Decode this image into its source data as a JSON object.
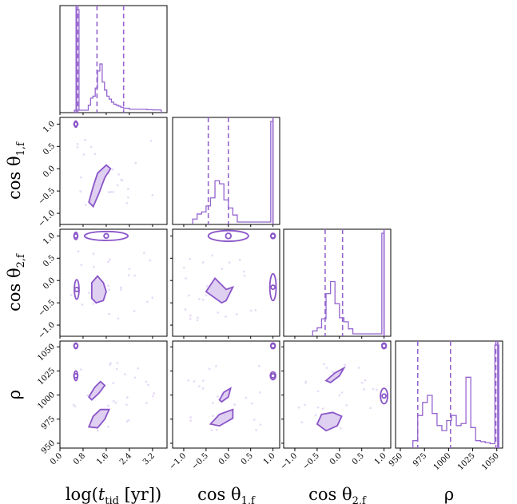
{
  "chart_data": {
    "type": "corner",
    "accent_color": "#9565cf",
    "parameters": [
      {
        "key": "logt",
        "label_main": "log(",
        "label_t": "t",
        "label_sub": "tid",
        "label_rest": " [yr])",
        "range": [
          0.0,
          3.7
        ],
        "ticks": [
          0.0,
          0.8,
          1.6,
          2.4,
          3.2
        ],
        "tick_labels": [
          "0.0",
          "0.8",
          "1.6",
          "2.4",
          "3.2"
        ],
        "quantiles": [
          0.62,
          1.28,
          2.2
        ],
        "truth": 0.56,
        "hist_edges": [
          0.5,
          0.58,
          0.66,
          0.74,
          0.82,
          0.9,
          0.98,
          1.06,
          1.14,
          1.22,
          1.3,
          1.38,
          1.46,
          1.54,
          1.62,
          1.7,
          1.78,
          1.86,
          1.94,
          2.02,
          2.1,
          2.2,
          2.4,
          2.6,
          2.8,
          3.0,
          3.2,
          3.5
        ],
        "hist_counts": [
          0,
          100,
          0,
          0,
          0,
          0,
          5,
          12,
          14,
          22,
          39,
          46,
          28,
          20,
          14,
          11,
          8,
          6,
          5,
          4,
          3,
          2,
          1,
          1,
          1,
          0.5,
          0.3
        ]
      },
      {
        "key": "c1",
        "label_main": "cos θ",
        "label_sub": "1,f",
        "range": [
          -1.25,
          1.15
        ],
        "ticks": [
          -1.0,
          -0.5,
          0.0,
          0.5,
          1.0
        ],
        "tick_labels": [
          "−1.0",
          "−0.5",
          "0.0",
          "0.5",
          "1.0"
        ],
        "quantiles": [
          -0.45,
          0.0
        ],
        "truth": 1.0,
        "hist_edges": [
          -0.8,
          -0.7,
          -0.6,
          -0.5,
          -0.4,
          -0.3,
          -0.2,
          -0.1,
          0.0,
          0.1,
          0.2,
          0.95,
          1.0
        ],
        "hist_counts": [
          3,
          8,
          10,
          16,
          24,
          41,
          38,
          22,
          14,
          7,
          0,
          100
        ]
      },
      {
        "key": "c2",
        "label_main": "cos θ",
        "label_sub": "2,f",
        "range": [
          -1.25,
          1.15
        ],
        "ticks": [
          -1.0,
          -0.5,
          0.0,
          0.5,
          1.0
        ],
        "tick_labels": [
          "−1.0",
          "−0.5",
          "0.0",
          "0.5",
          "1.0"
        ],
        "quantiles": [
          -0.32,
          0.07
        ],
        "truth": 1.0,
        "hist_edges": [
          -0.6,
          -0.5,
          -0.4,
          -0.3,
          -0.2,
          -0.1,
          0.0,
          0.1,
          0.2,
          0.3,
          0.95,
          1.0
        ],
        "hist_counts": [
          3,
          6,
          15,
          40,
          52,
          30,
          16,
          12,
          5,
          0,
          100
        ]
      },
      {
        "key": "rho",
        "label_main": "ρ",
        "range": [
          945,
          1056
        ],
        "ticks": [
          950,
          975,
          1000,
          1025,
          1050
        ],
        "tick_labels": [
          "950",
          "975",
          "1000",
          "1025",
          "1050"
        ],
        "quantiles": [
          968,
          1002,
          1049
        ],
        "truth": 1051,
        "hist_edges": [
          963,
          968,
          973,
          978,
          983,
          988,
          993,
          998,
          1003,
          1008,
          1013,
          1018,
          1023,
          1028,
          1033,
          1038,
          1043,
          1048,
          1052
        ],
        "hist_counts": [
          5,
          30,
          43,
          50,
          32,
          20,
          15,
          25,
          30,
          20,
          22,
          68,
          18,
          5,
          4,
          3,
          2,
          100
        ]
      }
    ],
    "contours": [
      {
        "panel": "c1_logt",
        "cx": 0.55,
        "cy": 1.0,
        "rx": 0.05,
        "ry": 0.07
      },
      {
        "panel": "c1_logt",
        "poly": [
          [
            1.0,
            -0.75
          ],
          [
            1.15,
            -0.4
          ],
          [
            1.3,
            -0.1
          ],
          [
            1.6,
            0.08
          ],
          [
            1.75,
            0.0
          ],
          [
            1.55,
            -0.2
          ],
          [
            1.35,
            -0.55
          ],
          [
            1.15,
            -0.85
          ]
        ]
      },
      {
        "panel": "c2_logt",
        "cx": 0.55,
        "cy": 1.0,
        "rx": 0.06,
        "ry": 0.08
      },
      {
        "panel": "c2_logt",
        "cx": 1.6,
        "cy": 1.0,
        "rx": 0.75,
        "ry": 0.1
      },
      {
        "panel": "c2_logt",
        "cx": 0.58,
        "cy": -0.2,
        "rx": 0.08,
        "ry": 0.22
      },
      {
        "panel": "c2_logt",
        "poly": [
          [
            1.1,
            -0.4
          ],
          [
            1.1,
            -0.05
          ],
          [
            1.3,
            0.1
          ],
          [
            1.5,
            -0.05
          ],
          [
            1.6,
            -0.25
          ],
          [
            1.5,
            -0.45
          ],
          [
            1.25,
            -0.5
          ]
        ]
      },
      {
        "panel": "c2_c1",
        "cx": 0.0,
        "cy": 1.0,
        "rx": 0.45,
        "ry": 0.12
      },
      {
        "panel": "c2_c1",
        "cx": 1.0,
        "cy": 1.0,
        "rx": 0.05,
        "ry": 0.06
      },
      {
        "panel": "c2_c1",
        "cx": 1.0,
        "cy": -0.15,
        "rx": 0.07,
        "ry": 0.3
      },
      {
        "panel": "c2_c1",
        "poly": [
          [
            -0.5,
            -0.25
          ],
          [
            -0.3,
            0.05
          ],
          [
            -0.2,
            -0.05
          ],
          [
            -0.05,
            -0.2
          ],
          [
            0.1,
            -0.15
          ],
          [
            -0.05,
            -0.45
          ],
          [
            -0.15,
            -0.5
          ]
        ]
      },
      {
        "panel": "rho_logt",
        "cx": 0.55,
        "cy": 1051,
        "rx": 0.06,
        "ry": 3
      },
      {
        "panel": "rho_logt",
        "cx": 0.55,
        "cy": 1020,
        "rx": 0.06,
        "ry": 5
      },
      {
        "panel": "rho_logt",
        "poly": [
          [
            1.0,
            998
          ],
          [
            1.2,
            1008
          ],
          [
            1.4,
            1014
          ],
          [
            1.55,
            1010
          ],
          [
            1.35,
            1002
          ],
          [
            1.1,
            995
          ]
        ]
      },
      {
        "panel": "rho_logt",
        "poly": [
          [
            1.0,
            967
          ],
          [
            1.15,
            978
          ],
          [
            1.4,
            985
          ],
          [
            1.7,
            985
          ],
          [
            1.55,
            975
          ],
          [
            1.3,
            966
          ]
        ]
      },
      {
        "panel": "rho_c1",
        "cx": 1.0,
        "cy": 1051,
        "rx": 0.05,
        "ry": 3
      },
      {
        "panel": "rho_c1",
        "cx": 1.0,
        "cy": 1020,
        "rx": 0.06,
        "ry": 4
      },
      {
        "panel": "rho_c1",
        "poly": [
          [
            -0.2,
            995
          ],
          [
            -0.1,
            1003
          ],
          [
            0.05,
            1007
          ],
          [
            0.0,
            998
          ],
          [
            -0.15,
            993
          ]
        ]
      },
      {
        "panel": "rho_c1",
        "poly": [
          [
            -0.4,
            970
          ],
          [
            -0.2,
            980
          ],
          [
            0.1,
            985
          ],
          [
            0.1,
            976
          ],
          [
            -0.2,
            968
          ]
        ]
      },
      {
        "panel": "rho_c2",
        "cx": 1.0,
        "cy": 1051,
        "rx": 0.05,
        "ry": 3
      },
      {
        "panel": "rho_c2",
        "cx": 1.0,
        "cy": 999,
        "rx": 0.08,
        "ry": 8
      },
      {
        "panel": "rho_c2",
        "poly": [
          [
            -0.3,
            1015
          ],
          [
            -0.1,
            1023
          ],
          [
            0.1,
            1028
          ],
          [
            0.0,
            1020
          ],
          [
            -0.2,
            1013
          ]
        ]
      },
      {
        "panel": "rho_c2",
        "poly": [
          [
            -0.5,
            970
          ],
          [
            -0.4,
            980
          ],
          [
            -0.15,
            982
          ],
          [
            0.05,
            978
          ],
          [
            -0.05,
            968
          ],
          [
            -0.3,
            963
          ]
        ]
      }
    ]
  }
}
